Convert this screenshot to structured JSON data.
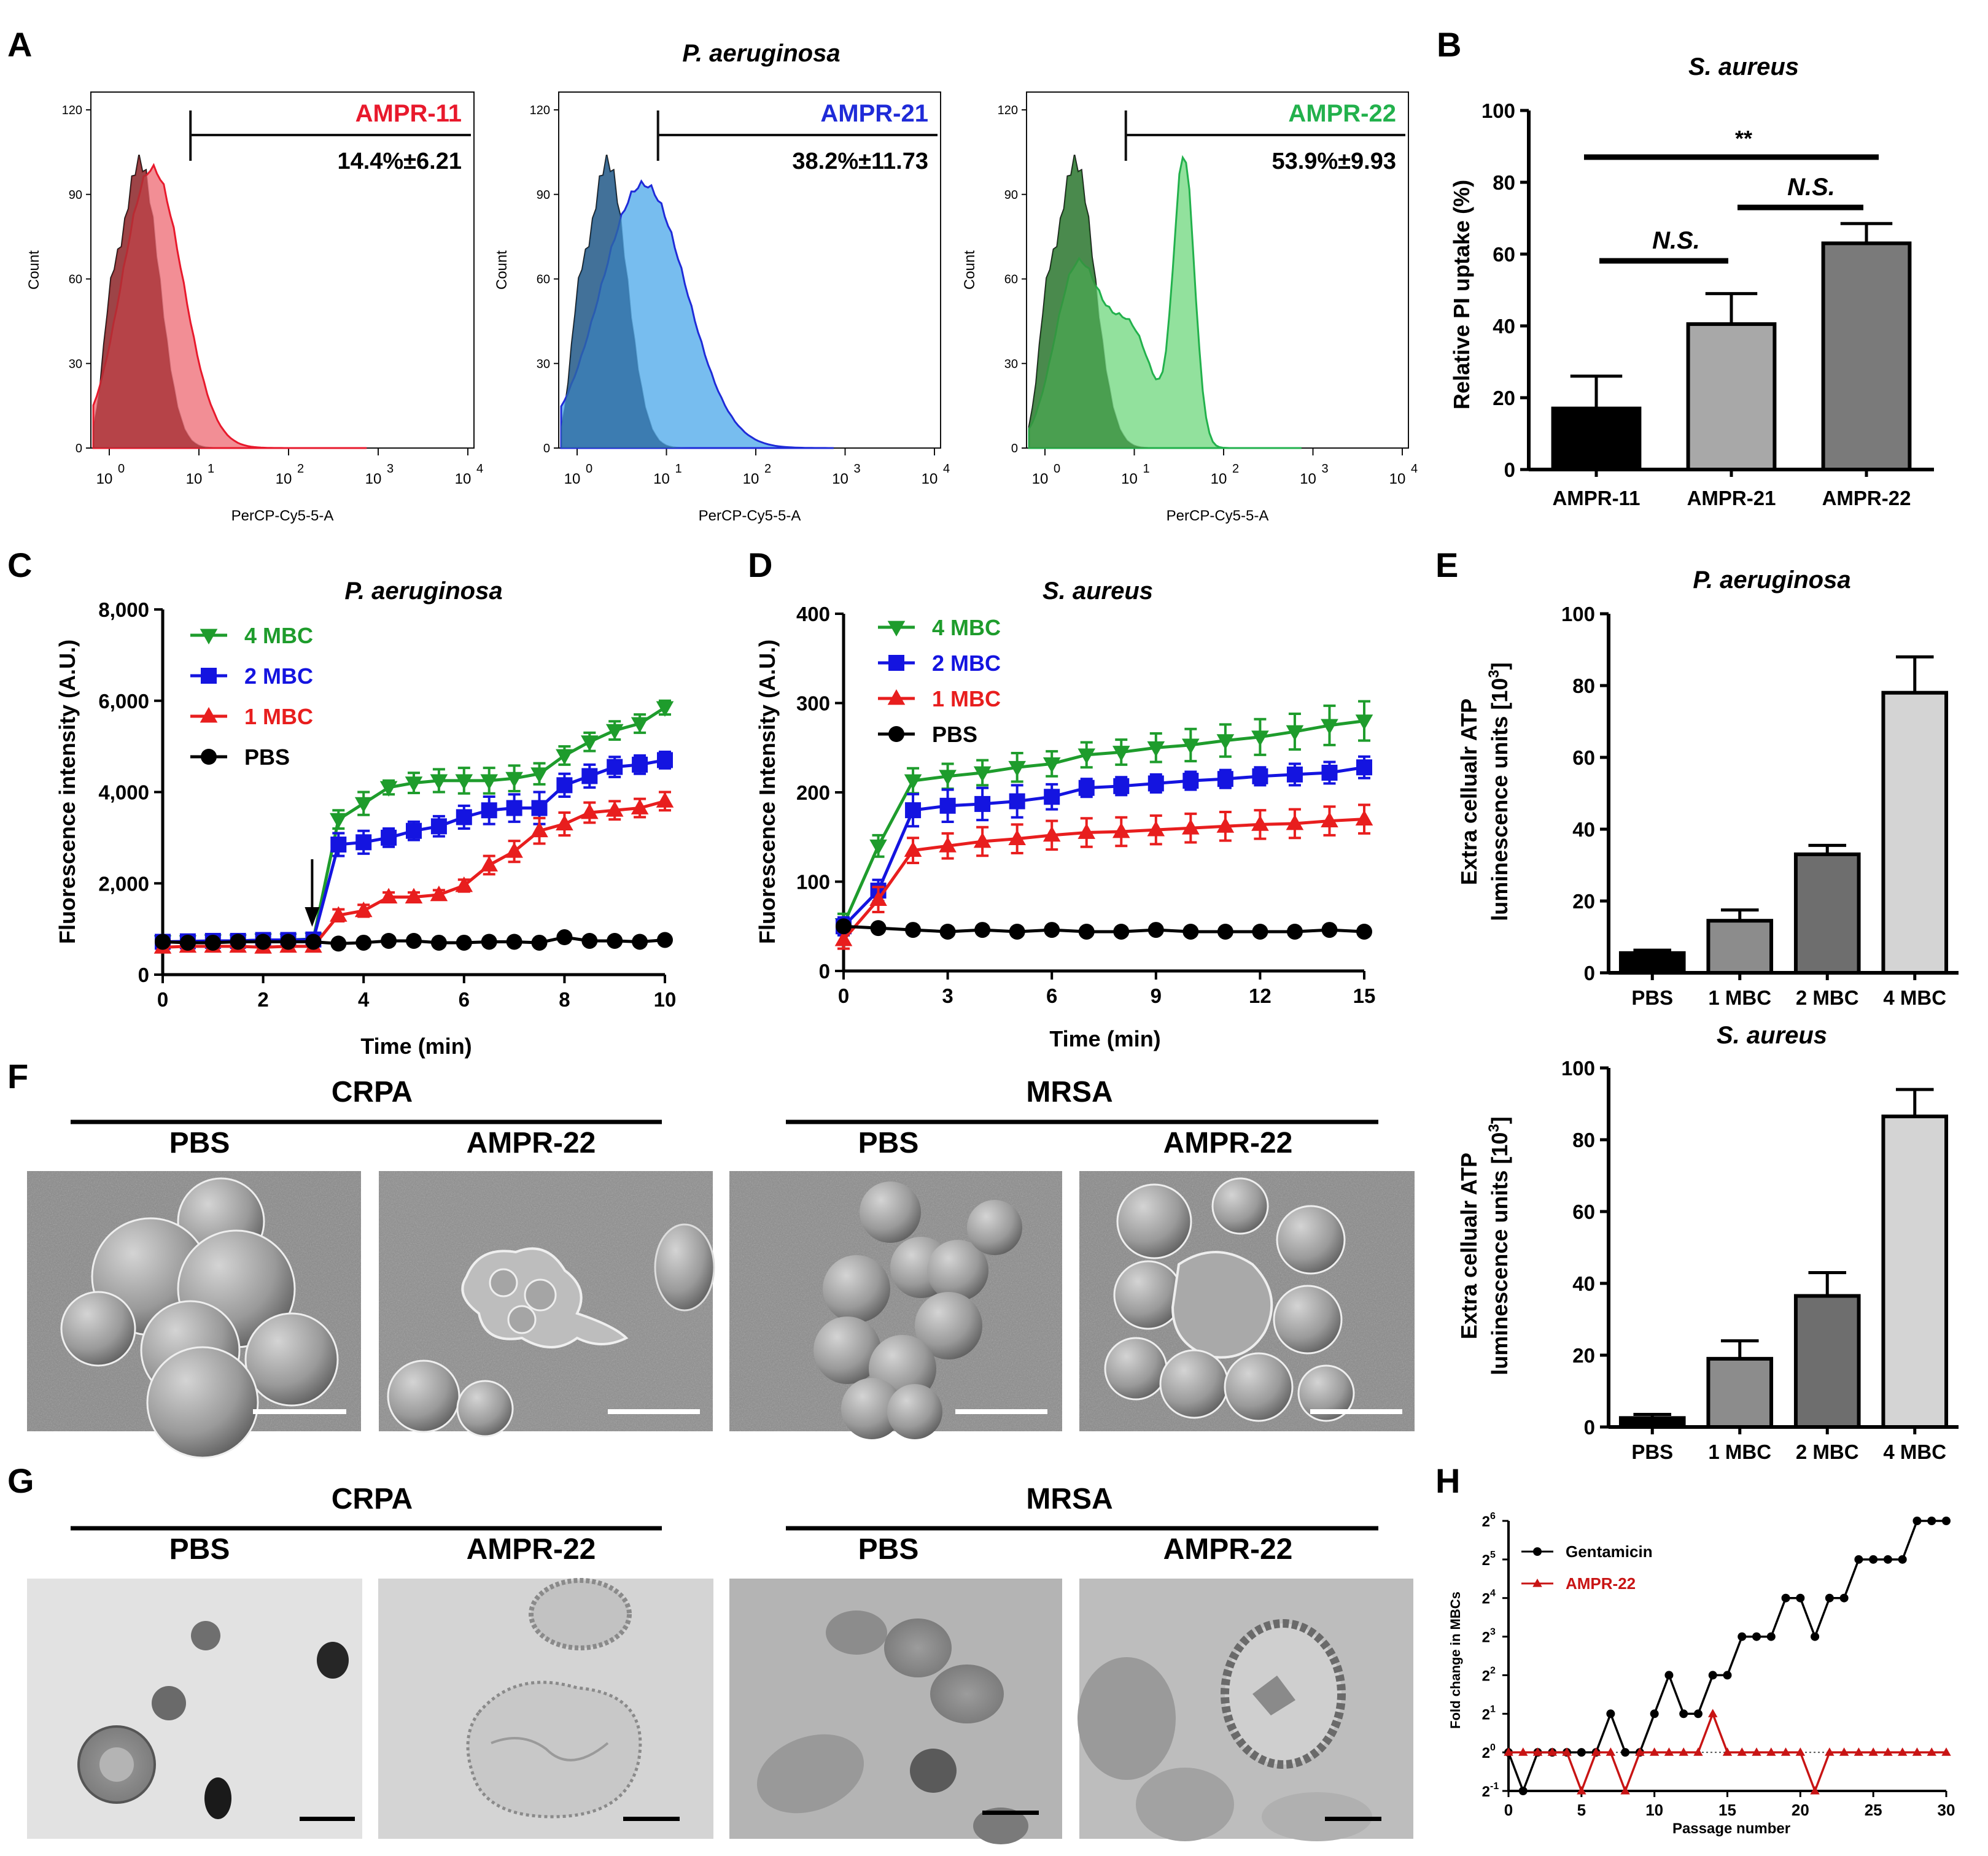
{
  "panels": {
    "A": {
      "label": "A",
      "title": "P. aeruginosa",
      "xlabel": "PerCP-Cy5-5-A",
      "ylabel": "Count",
      "yticks": [
        "0",
        "30",
        "60",
        "90",
        "120"
      ],
      "xticks": [
        [
          "10",
          "0"
        ],
        [
          "10",
          "1"
        ],
        [
          "10",
          "2"
        ],
        [
          "10",
          "3"
        ],
        [
          "10",
          "4"
        ]
      ],
      "plots": [
        {
          "name": "AMPR-11",
          "value": "14.4%±6.21",
          "color": "#e8192c",
          "fill": "#f07a82",
          "darkfill": "#a83236"
        },
        {
          "name": "AMPR-21",
          "value": "38.2%±11.73",
          "color": "#1f2bd8",
          "fill": "#5fb2ec",
          "darkfill": "#2f6ea3"
        },
        {
          "name": "AMPR-22",
          "value": "53.9%±9.93",
          "color": "#22b14c",
          "fill": "#7fdc8c",
          "darkfill": "#3a8f3e"
        }
      ]
    },
    "B": {
      "label": "B",
      "title": "S. aureus",
      "ylabel": "Relative PI uptake (%)",
      "sig": [
        "N.S.",
        "N.S.",
        "**"
      ]
    },
    "C": {
      "label": "C",
      "title": "P. aeruginosa",
      "xlabel": "Time (min)",
      "ylabel": "Fluorescence intensity (A.U.)",
      "legend": [
        "4 MBC",
        "2 MBC",
        "1 MBC",
        "PBS"
      ]
    },
    "D": {
      "label": "D",
      "title": "S. aureus",
      "xlabel": "Time (min)",
      "ylabel": "Fluorescence Intensity (A.U.)",
      "legend": [
        "4 MBC",
        "2 MBC",
        "1 MBC",
        "PBS"
      ]
    },
    "E": {
      "label": "E",
      "title_top": "P. aeruginosa",
      "title_bottom": "S. aureus",
      "ylabel_line1": "Extra cellualr ATP",
      "ylabel_line2": "luminescence units [10",
      "ylabel_sup": "3",
      "ylabel_end": "]"
    },
    "F": {
      "label": "F",
      "groups": [
        "CRPA",
        "MRSA"
      ],
      "images": [
        "PBS",
        "AMPR-22",
        "PBS",
        "AMPR-22"
      ]
    },
    "G": {
      "label": "G",
      "groups": [
        "CRPA",
        "MRSA"
      ],
      "images": [
        "PBS",
        "AMPR-22",
        "PBS",
        "AMPR-22"
      ]
    },
    "H": {
      "label": "H",
      "xlabel": "Passage number",
      "ylabel": "Fold change in MBCs",
      "legend": [
        "Gentamicin",
        "AMPR-22"
      ],
      "ytick_base": "2",
      "ytick_exps": [
        "-1",
        "0",
        "1",
        "2",
        "3",
        "4",
        "5",
        "6"
      ]
    }
  },
  "chart_data": [
    {
      "panel": "A",
      "type": "histogram",
      "title": "P. aeruginosa",
      "xlabel": "PerCP-Cy5-5-A",
      "ylabel": "Count",
      "xscale": "log10",
      "xlim": [
        1,
        10000
      ],
      "ylim": [
        0,
        120
      ],
      "series": [
        {
          "name": "AMPR-11",
          "gate_percent": 14.4,
          "sd": 6.21
        },
        {
          "name": "AMPR-21",
          "gate_percent": 38.2,
          "sd": 11.73
        },
        {
          "name": "AMPR-22",
          "gate_percent": 53.9,
          "sd": 9.93
        }
      ]
    },
    {
      "panel": "B",
      "type": "bar",
      "title": "S. aureus",
      "ylabel": "Relative PI uptake (%)",
      "ylim": [
        0,
        100
      ],
      "yticks": [
        0,
        20,
        40,
        60,
        80,
        100
      ],
      "categories": [
        "AMPR-11",
        "AMPR-21",
        "AMPR-22"
      ],
      "values": [
        17,
        40.5,
        63
      ],
      "errors": [
        9,
        8.5,
        5.5
      ],
      "colors": [
        "#000000",
        "#a8a8a8",
        "#7a7a7a"
      ],
      "significance": [
        {
          "pair": [
            "AMPR-11",
            "AMPR-21"
          ],
          "label": "N.S."
        },
        {
          "pair": [
            "AMPR-21",
            "AMPR-22"
          ],
          "label": "N.S."
        },
        {
          "pair": [
            "AMPR-11",
            "AMPR-22"
          ],
          "label": "**"
        }
      ]
    },
    {
      "panel": "C",
      "type": "line",
      "title": "P. aeruginosa",
      "xlabel": "Time (min)",
      "ylabel": "Fluorescence intensity (A.U.)",
      "xlim": [
        0,
        10
      ],
      "ylim": [
        0,
        8000
      ],
      "xticks": [
        0,
        2,
        4,
        6,
        8,
        10
      ],
      "yticks": [
        0,
        2000,
        4000,
        6000,
        8000
      ],
      "ytick_labels": [
        "0",
        "2,000",
        "4,000",
        "6,000",
        "8,000"
      ],
      "arrow_at": 3,
      "x": [
        0,
        0.5,
        1,
        1.5,
        2,
        2.5,
        3,
        3.5,
        4,
        4.5,
        5,
        5.5,
        6,
        6.5,
        7,
        7.5,
        8,
        8.5,
        9,
        9.5,
        10
      ],
      "series": [
        {
          "name": "4 MBC",
          "color": "#1e9c2c",
          "marker": "tri-down",
          "values": [
            720,
            720,
            740,
            740,
            760,
            760,
            780,
            3400,
            3750,
            4100,
            4200,
            4250,
            4250,
            4250,
            4300,
            4400,
            4800,
            5100,
            5350,
            5500,
            5850
          ],
          "errors": [
            80,
            80,
            80,
            80,
            80,
            80,
            80,
            200,
            250,
            150,
            220,
            250,
            280,
            280,
            280,
            230,
            200,
            200,
            200,
            200,
            150
          ]
        },
        {
          "name": "2 MBC",
          "color": "#1414e0",
          "marker": "square",
          "values": [
            720,
            730,
            740,
            740,
            760,
            760,
            770,
            2850,
            2900,
            3000,
            3150,
            3250,
            3450,
            3600,
            3650,
            3650,
            4150,
            4350,
            4550,
            4600,
            4700
          ],
          "errors": [
            80,
            80,
            80,
            80,
            80,
            80,
            80,
            250,
            250,
            200,
            200,
            220,
            250,
            300,
            300,
            350,
            250,
            250,
            220,
            200,
            180
          ]
        },
        {
          "name": "1 MBC",
          "color": "#e81e1e",
          "marker": "tri-up",
          "values": [
            600,
            620,
            620,
            620,
            600,
            620,
            620,
            1300,
            1400,
            1700,
            1700,
            1750,
            1950,
            2400,
            2700,
            3150,
            3300,
            3550,
            3600,
            3650,
            3800
          ],
          "errors": [
            60,
            60,
            60,
            60,
            60,
            60,
            60,
            130,
            130,
            100,
            100,
            100,
            130,
            200,
            230,
            280,
            250,
            220,
            200,
            200,
            200
          ]
        },
        {
          "name": "PBS",
          "color": "#000000",
          "marker": "circle",
          "values": [
            720,
            700,
            700,
            720,
            720,
            720,
            720,
            680,
            700,
            740,
            740,
            700,
            700,
            720,
            720,
            700,
            820,
            740,
            740,
            720,
            760
          ],
          "errors": [
            60,
            60,
            60,
            60,
            60,
            60,
            60,
            60,
            60,
            60,
            60,
            60,
            60,
            60,
            60,
            60,
            60,
            60,
            60,
            60,
            60
          ]
        }
      ]
    },
    {
      "panel": "D",
      "type": "line",
      "title": "S. aureus",
      "xlabel": "Time (min)",
      "ylabel": "Fluorescence Intensity (A.U.)",
      "xlim": [
        0,
        15
      ],
      "ylim": [
        0,
        400
      ],
      "xticks": [
        0,
        3,
        6,
        9,
        12,
        15
      ],
      "yticks": [
        0,
        100,
        200,
        300,
        400
      ],
      "x": [
        0,
        1,
        2,
        3,
        4,
        5,
        6,
        7,
        8,
        9,
        10,
        11,
        12,
        13,
        14,
        15
      ],
      "series": [
        {
          "name": "4 MBC",
          "color": "#1e9c2c",
          "marker": "tri-down",
          "values": [
            52,
            140,
            213,
            218,
            222,
            228,
            232,
            242,
            245,
            250,
            253,
            258,
            262,
            268,
            275,
            280
          ],
          "errors": [
            12,
            12,
            14,
            14,
            14,
            16,
            14,
            14,
            14,
            16,
            18,
            18,
            20,
            20,
            22,
            22
          ]
        },
        {
          "name": "2 MBC",
          "color": "#1414e0",
          "marker": "square",
          "values": [
            50,
            90,
            180,
            185,
            187,
            190,
            195,
            205,
            207,
            210,
            213,
            215,
            218,
            220,
            222,
            228
          ],
          "errors": [
            10,
            12,
            18,
            18,
            18,
            18,
            14,
            10,
            10,
            10,
            10,
            10,
            10,
            12,
            12,
            12
          ]
        },
        {
          "name": "1 MBC",
          "color": "#e81e1e",
          "marker": "tri-up",
          "values": [
            35,
            80,
            135,
            140,
            145,
            148,
            152,
            155,
            156,
            158,
            160,
            162,
            164,
            165,
            168,
            170
          ],
          "errors": [
            10,
            14,
            14,
            14,
            16,
            16,
            16,
            16,
            16,
            16,
            16,
            16,
            16,
            16,
            16,
            16
          ]
        },
        {
          "name": "PBS",
          "color": "#000000",
          "marker": "circle",
          "values": [
            50,
            48,
            46,
            44,
            46,
            44,
            46,
            44,
            44,
            46,
            44,
            44,
            44,
            44,
            46,
            44
          ],
          "errors": [
            4,
            4,
            4,
            4,
            4,
            4,
            4,
            4,
            4,
            4,
            4,
            4,
            4,
            4,
            4,
            4
          ]
        }
      ]
    },
    {
      "panel": "E-top",
      "type": "bar",
      "title": "P. aeruginosa",
      "ylabel": "Extra cellualr ATP luminescence units [10^3]",
      "ylim": [
        0,
        100
      ],
      "yticks": [
        0,
        20,
        40,
        60,
        80,
        100
      ],
      "categories": [
        "PBS",
        "1 MBC",
        "2 MBC",
        "4 MBC"
      ],
      "values": [
        5.5,
        14.5,
        33,
        78
      ],
      "errors": [
        0.8,
        3,
        2.5,
        10
      ],
      "colors": [
        "#000000",
        "#8c8c8c",
        "#6e6e6e",
        "#d4d4d4"
      ]
    },
    {
      "panel": "E-bottom",
      "type": "bar",
      "title": "S. aureus",
      "ylabel": "Extra cellualr ATP luminescence units [10^3]",
      "ylim": [
        0,
        100
      ],
      "yticks": [
        0,
        20,
        40,
        60,
        80,
        100
      ],
      "categories": [
        "PBS",
        "1 MBC",
        "2 MBC",
        "4 MBC"
      ],
      "values": [
        2.5,
        19,
        36.5,
        86.5
      ],
      "errors": [
        1,
        5,
        6.5,
        7.5
      ],
      "colors": [
        "#000000",
        "#8c8c8c",
        "#6e6e6e",
        "#d4d4d4"
      ]
    },
    {
      "panel": "H",
      "type": "line",
      "xlabel": "Passage number",
      "ylabel": "Fold change in MBCs",
      "xlim": [
        0,
        30
      ],
      "ylim": [
        -1,
        6
      ],
      "yscale": "log2",
      "xticks": [
        0,
        5,
        10,
        15,
        20,
        25,
        30
      ],
      "x": [
        0,
        1,
        2,
        3,
        4,
        5,
        6,
        7,
        8,
        9,
        10,
        11,
        12,
        13,
        14,
        15,
        16,
        17,
        18,
        19,
        20,
        21,
        22,
        23,
        24,
        25,
        26,
        27,
        28,
        29,
        30
      ],
      "series": [
        {
          "name": "Gentamicin",
          "color": "#000000",
          "marker": "circle",
          "values": [
            0,
            -1,
            0,
            0,
            0,
            0,
            0,
            1,
            0,
            0,
            1,
            2,
            1,
            1,
            2,
            2,
            3,
            3,
            3,
            4,
            4,
            3,
            4,
            4,
            5,
            5,
            5,
            5,
            6,
            6,
            6
          ]
        },
        {
          "name": "AMPR-22",
          "color": "#c81414",
          "marker": "tri-up",
          "values": [
            0,
            0,
            0,
            0,
            0,
            -1,
            0,
            0,
            -1,
            0,
            0,
            0,
            0,
            0,
            1,
            0,
            0,
            0,
            0,
            0,
            0,
            -1,
            0,
            0,
            0,
            0,
            0,
            0,
            0,
            0,
            0
          ]
        }
      ]
    }
  ]
}
